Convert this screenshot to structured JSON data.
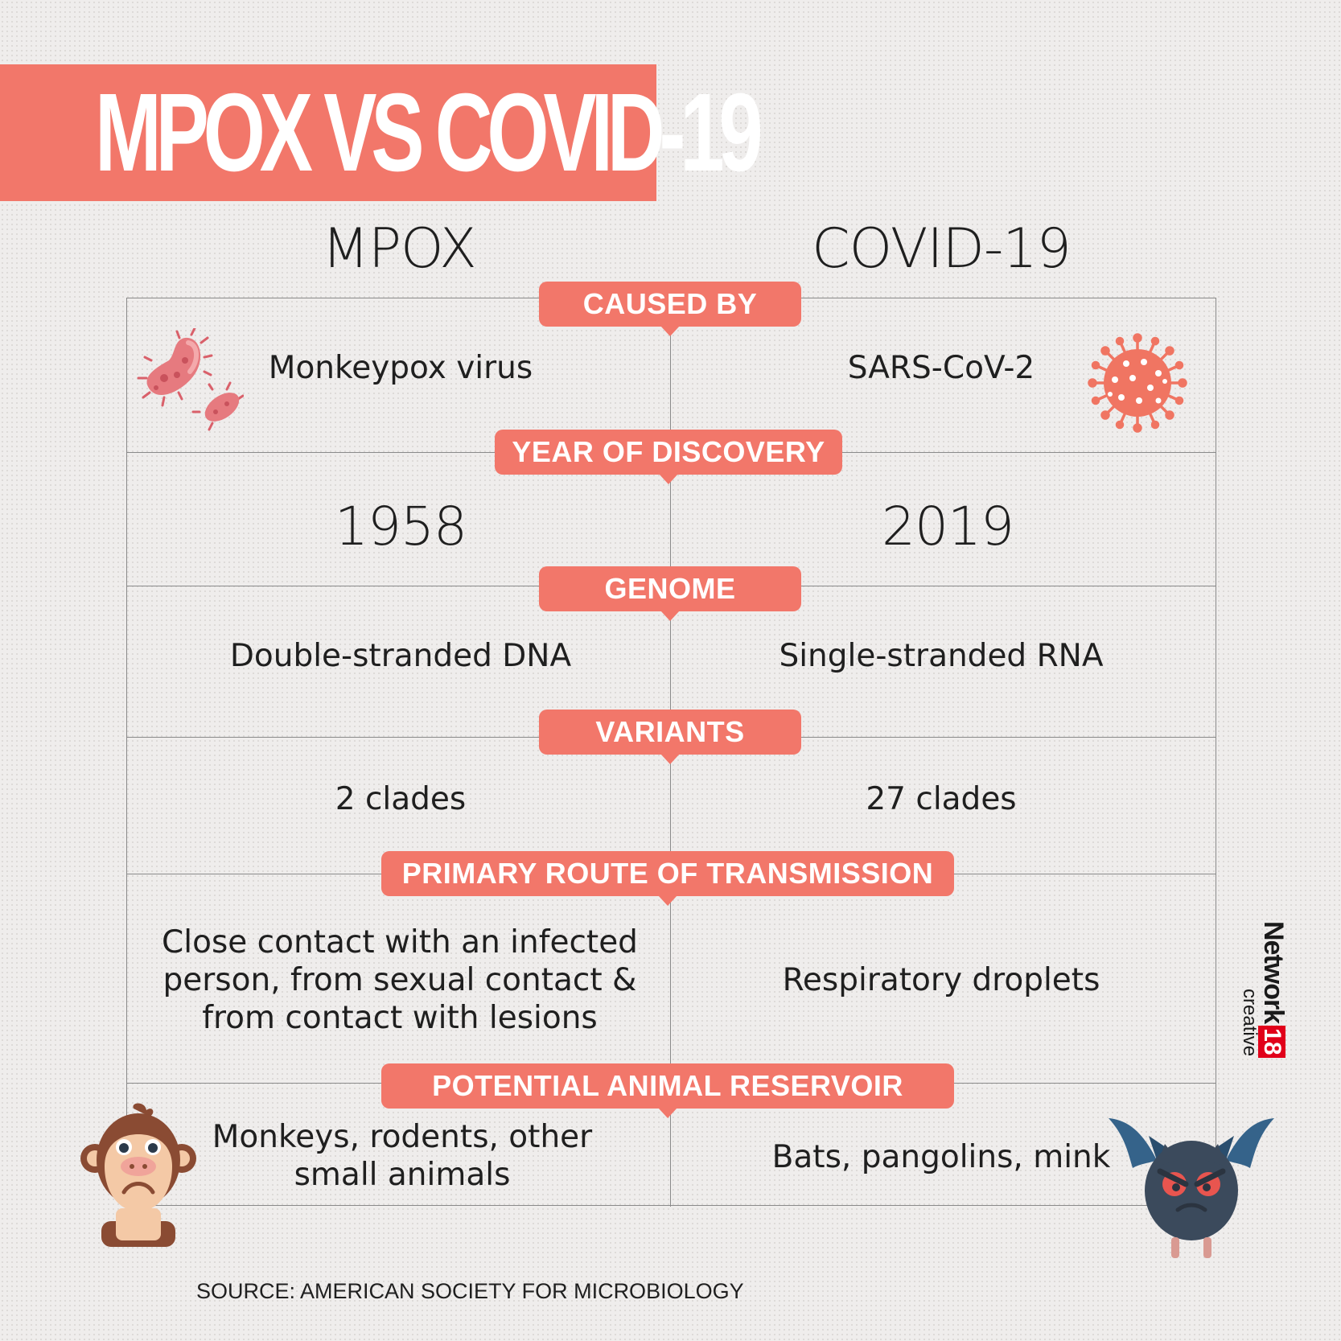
{
  "title": "MPOX VS COVID-19",
  "columns": {
    "left": "MPOX",
    "right": "COVID-19"
  },
  "rows": [
    {
      "label": "CAUSED BY",
      "left": "Monkeypox virus",
      "right": "SARS-CoV-2"
    },
    {
      "label": "YEAR OF DISCOVERY",
      "left": "1958",
      "right": "2019"
    },
    {
      "label": "GENOME",
      "left": "Double-stranded DNA",
      "right": "Single-stranded RNA"
    },
    {
      "label": "VARIANTS",
      "left": "2 clades",
      "right": "27 clades"
    },
    {
      "label": "PRIMARY ROUTE OF TRANSMISSION",
      "left": "Close contact with an infected person, from sexual contact & from contact with lesions",
      "right": "Respiratory droplets"
    },
    {
      "label": "POTENTIAL ANIMAL RESERVOIR",
      "left": "Monkeys, rodents, other small animals",
      "right": "Bats, pangolins, mink"
    }
  ],
  "source": "SOURCE: AMERICAN SOCIETY FOR MICROBIOLOGY",
  "brand": {
    "name": "Network",
    "number": "18",
    "sub": "creative"
  },
  "colors": {
    "accent": "#f2776a",
    "background": "#efedec"
  },
  "icons": [
    "bacteria-icon",
    "coronavirus-icon",
    "monkey-icon",
    "bat-icon"
  ]
}
